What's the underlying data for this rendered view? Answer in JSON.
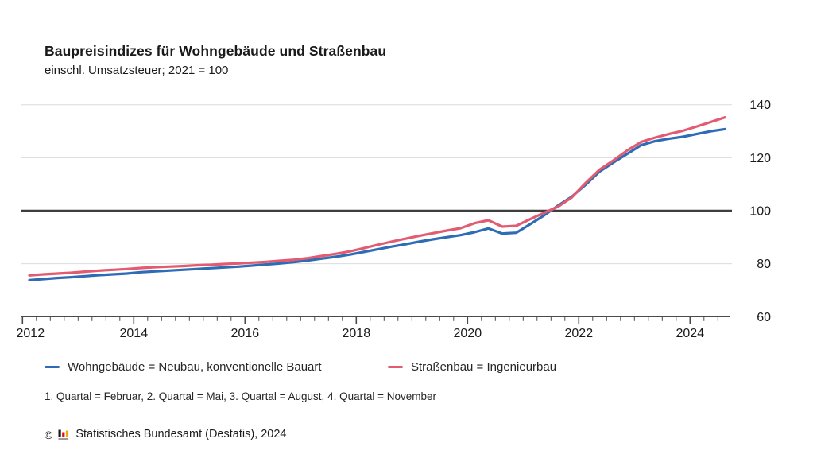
{
  "header": {
    "title": "Baupreisindizes für Wohngebäude und Straßenbau",
    "subtitle": "einschl. Umsatzsteuer; 2021 = 100"
  },
  "legend": [
    {
      "label": "Wohngebäude = Neubau, konventionelle Bauart",
      "color": "#2e6cb6"
    },
    {
      "label": "Straßenbau = Ingenieurbau",
      "color": "#e25b70"
    }
  ],
  "footnote": "1. Quartal = Februar, 2. Quartal = Mai, 3. Quartal = August, 4. Quartal = November",
  "source": {
    "copyright_symbol": "©",
    "logo": "destatis-bar-chart-icon",
    "logo_colors": {
      "bar1": "#1a1a1a",
      "bar2": "#e30613",
      "bar3": "#f2a900",
      "base": "#9b9b9b"
    },
    "text": "Statistisches Bundesamt (Destatis), 2024"
  },
  "chart_data": {
    "type": "line",
    "x_axis": {
      "unit": "quarter",
      "start": "2012-Q1",
      "end": "2024-Q3",
      "tick_years": [
        2012,
        2014,
        2016,
        2018,
        2020,
        2022,
        2024
      ],
      "minor_tick_step_years": 0.25
    },
    "y_axis": {
      "ticks": [
        140,
        120,
        100,
        80,
        60
      ],
      "gridlines": [
        140,
        120,
        80
      ],
      "reference_line": 100,
      "ylim": [
        60,
        140
      ],
      "label_side": "right"
    },
    "series": [
      {
        "name": "Wohngebäude = Neubau, konventionelle Bauart",
        "color": "#2e6cb6",
        "values": [
          73.8,
          74.2,
          74.6,
          74.9,
          75.3,
          75.7,
          76.0,
          76.3,
          76.8,
          77.1,
          77.4,
          77.7,
          78.0,
          78.3,
          78.6,
          78.9,
          79.3,
          79.7,
          80.1,
          80.6,
          81.2,
          81.9,
          82.6,
          83.4,
          84.4,
          85.4,
          86.4,
          87.3,
          88.3,
          89.2,
          90.0,
          90.8,
          91.9,
          93.3,
          91.4,
          91.7,
          94.9,
          98.2,
          101.9,
          105.3,
          109.8,
          114.8,
          118.2,
          121.5,
          124.8,
          126.3,
          127.2,
          127.9,
          129.0,
          130.0,
          130.8
        ]
      },
      {
        "name": "Straßenbau = Ingenieurbau",
        "color": "#e25b70",
        "values": [
          75.6,
          76.0,
          76.3,
          76.6,
          77.0,
          77.4,
          77.7,
          78.0,
          78.4,
          78.7,
          78.9,
          79.1,
          79.4,
          79.6,
          79.9,
          80.1,
          80.4,
          80.7,
          81.1,
          81.5,
          82.1,
          82.9,
          83.7,
          84.6,
          85.8,
          87.1,
          88.3,
          89.4,
          90.5,
          91.5,
          92.5,
          93.4,
          95.3,
          96.4,
          94.0,
          94.3,
          96.8,
          99.2,
          101.5,
          105.0,
          110.5,
          115.5,
          119.0,
          122.8,
          126.0,
          127.6,
          129.0,
          130.2,
          131.8,
          133.5,
          135.2
        ]
      }
    ]
  }
}
